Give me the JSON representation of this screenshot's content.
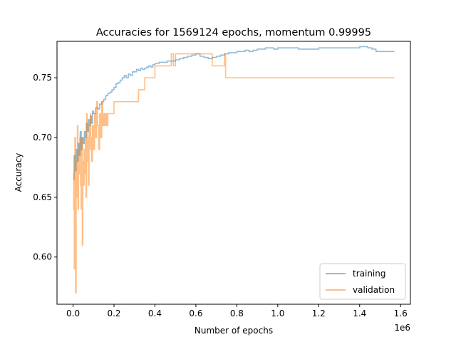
{
  "chart_data": {
    "type": "line",
    "title": "Accuracies for 1569124 epochs, momentum 0.99995",
    "xlabel": "Number of epochs",
    "ylabel": "Accuracy",
    "x_offset_label": "1e6",
    "xlim": [
      -0.0785,
      1.648
    ],
    "ylim": [
      0.5605,
      0.7805
    ],
    "x_ticks": [
      0.0,
      0.2,
      0.4,
      0.6,
      0.8,
      1.0,
      1.2,
      1.4,
      1.6
    ],
    "x_tick_labels": [
      "0.0",
      "0.2",
      "0.4",
      "0.6",
      "0.8",
      "1.0",
      "1.2",
      "1.4",
      "1.6"
    ],
    "y_ticks": [
      0.6,
      0.65,
      0.7,
      0.75
    ],
    "y_tick_labels": [
      "0.60",
      "0.65",
      "0.70",
      "0.75"
    ],
    "legend_position": "lower right",
    "grid": false,
    "series": [
      {
        "name": "training",
        "color": "#1f77b4",
        "x": [
          0.0,
          0.005,
          0.01,
          0.015,
          0.02,
          0.025,
          0.03,
          0.035,
          0.04,
          0.045,
          0.05,
          0.055,
          0.06,
          0.065,
          0.07,
          0.075,
          0.08,
          0.085,
          0.09,
          0.095,
          0.1,
          0.11,
          0.12,
          0.13,
          0.14,
          0.15,
          0.16,
          0.17,
          0.18,
          0.19,
          0.2,
          0.21,
          0.22,
          0.23,
          0.24,
          0.25,
          0.26,
          0.27,
          0.28,
          0.29,
          0.3,
          0.31,
          0.32,
          0.33,
          0.34,
          0.35,
          0.36,
          0.37,
          0.38,
          0.39,
          0.4,
          0.41,
          0.42,
          0.44,
          0.46,
          0.48,
          0.5,
          0.52,
          0.54,
          0.56,
          0.58,
          0.6,
          0.62,
          0.64,
          0.66,
          0.68,
          0.7,
          0.72,
          0.74,
          0.76,
          0.78,
          0.8,
          0.82,
          0.84,
          0.86,
          0.88,
          0.9,
          0.92,
          0.94,
          0.96,
          0.98,
          1.0,
          1.02,
          1.04,
          1.06,
          1.08,
          1.1,
          1.12,
          1.14,
          1.16,
          1.18,
          1.2,
          1.22,
          1.24,
          1.26,
          1.28,
          1.3,
          1.32,
          1.34,
          1.36,
          1.38,
          1.4,
          1.42,
          1.44,
          1.46,
          1.48,
          1.5,
          1.52,
          1.54,
          1.56,
          1.57
        ],
        "values": [
          0.665,
          0.685,
          0.672,
          0.69,
          0.68,
          0.695,
          0.685,
          0.705,
          0.69,
          0.7,
          0.695,
          0.705,
          0.7,
          0.712,
          0.705,
          0.715,
          0.71,
          0.718,
          0.712,
          0.722,
          0.72,
          0.725,
          0.724,
          0.728,
          0.73,
          0.732,
          0.735,
          0.737,
          0.738,
          0.74,
          0.742,
          0.745,
          0.746,
          0.748,
          0.75,
          0.752,
          0.75,
          0.753,
          0.752,
          0.755,
          0.755,
          0.757,
          0.756,
          0.758,
          0.757,
          0.758,
          0.759,
          0.76,
          0.759,
          0.761,
          0.762,
          0.762,
          0.763,
          0.763,
          0.764,
          0.764,
          0.765,
          0.766,
          0.767,
          0.768,
          0.769,
          0.77,
          0.768,
          0.767,
          0.766,
          0.767,
          0.768,
          0.769,
          0.77,
          0.771,
          0.771,
          0.772,
          0.772,
          0.773,
          0.772,
          0.773,
          0.774,
          0.774,
          0.775,
          0.775,
          0.774,
          0.775,
          0.775,
          0.775,
          0.775,
          0.775,
          0.774,
          0.774,
          0.774,
          0.774,
          0.774,
          0.775,
          0.775,
          0.775,
          0.775,
          0.775,
          0.775,
          0.775,
          0.775,
          0.775,
          0.775,
          0.776,
          0.776,
          0.775,
          0.774,
          0.772,
          0.772,
          0.772,
          0.772,
          0.772,
          0.772
        ]
      },
      {
        "name": "validation",
        "color": "#ff7f0e",
        "x": [
          0.0,
          0.003,
          0.006,
          0.009,
          0.012,
          0.015,
          0.018,
          0.021,
          0.024,
          0.027,
          0.03,
          0.033,
          0.036,
          0.039,
          0.042,
          0.045,
          0.048,
          0.051,
          0.054,
          0.057,
          0.06,
          0.063,
          0.066,
          0.069,
          0.072,
          0.075,
          0.078,
          0.081,
          0.084,
          0.087,
          0.09,
          0.095,
          0.1,
          0.105,
          0.11,
          0.115,
          0.12,
          0.125,
          0.13,
          0.135,
          0.14,
          0.145,
          0.15,
          0.155,
          0.16,
          0.165,
          0.17,
          0.18,
          0.19,
          0.2,
          0.21,
          0.22,
          0.24,
          0.26,
          0.28,
          0.3,
          0.32,
          0.33,
          0.35,
          0.37,
          0.39,
          0.4,
          0.42,
          0.44,
          0.46,
          0.48,
          0.49,
          0.5,
          0.52,
          0.54,
          0.56,
          0.58,
          0.6,
          0.62,
          0.64,
          0.66,
          0.68,
          0.7,
          0.72,
          0.74,
          0.745,
          0.8,
          0.9,
          1.0,
          1.1,
          1.2,
          1.3,
          1.4,
          1.5,
          1.57
        ],
        "values": [
          0.64,
          0.67,
          0.59,
          0.7,
          0.57,
          0.68,
          0.65,
          0.71,
          0.64,
          0.69,
          0.67,
          0.7,
          0.66,
          0.64,
          0.7,
          0.61,
          0.68,
          0.66,
          0.69,
          0.67,
          0.7,
          0.65,
          0.72,
          0.68,
          0.7,
          0.66,
          0.71,
          0.69,
          0.72,
          0.7,
          0.68,
          0.71,
          0.69,
          0.72,
          0.7,
          0.73,
          0.71,
          0.69,
          0.72,
          0.7,
          0.73,
          0.71,
          0.72,
          0.71,
          0.72,
          0.71,
          0.72,
          0.72,
          0.72,
          0.73,
          0.73,
          0.73,
          0.73,
          0.73,
          0.73,
          0.73,
          0.74,
          0.74,
          0.75,
          0.75,
          0.75,
          0.76,
          0.76,
          0.76,
          0.76,
          0.77,
          0.76,
          0.77,
          0.77,
          0.77,
          0.77,
          0.77,
          0.77,
          0.77,
          0.77,
          0.77,
          0.76,
          0.76,
          0.76,
          0.77,
          0.75,
          0.75,
          0.75,
          0.75,
          0.75,
          0.75,
          0.75,
          0.75,
          0.75,
          0.75
        ]
      }
    ]
  }
}
